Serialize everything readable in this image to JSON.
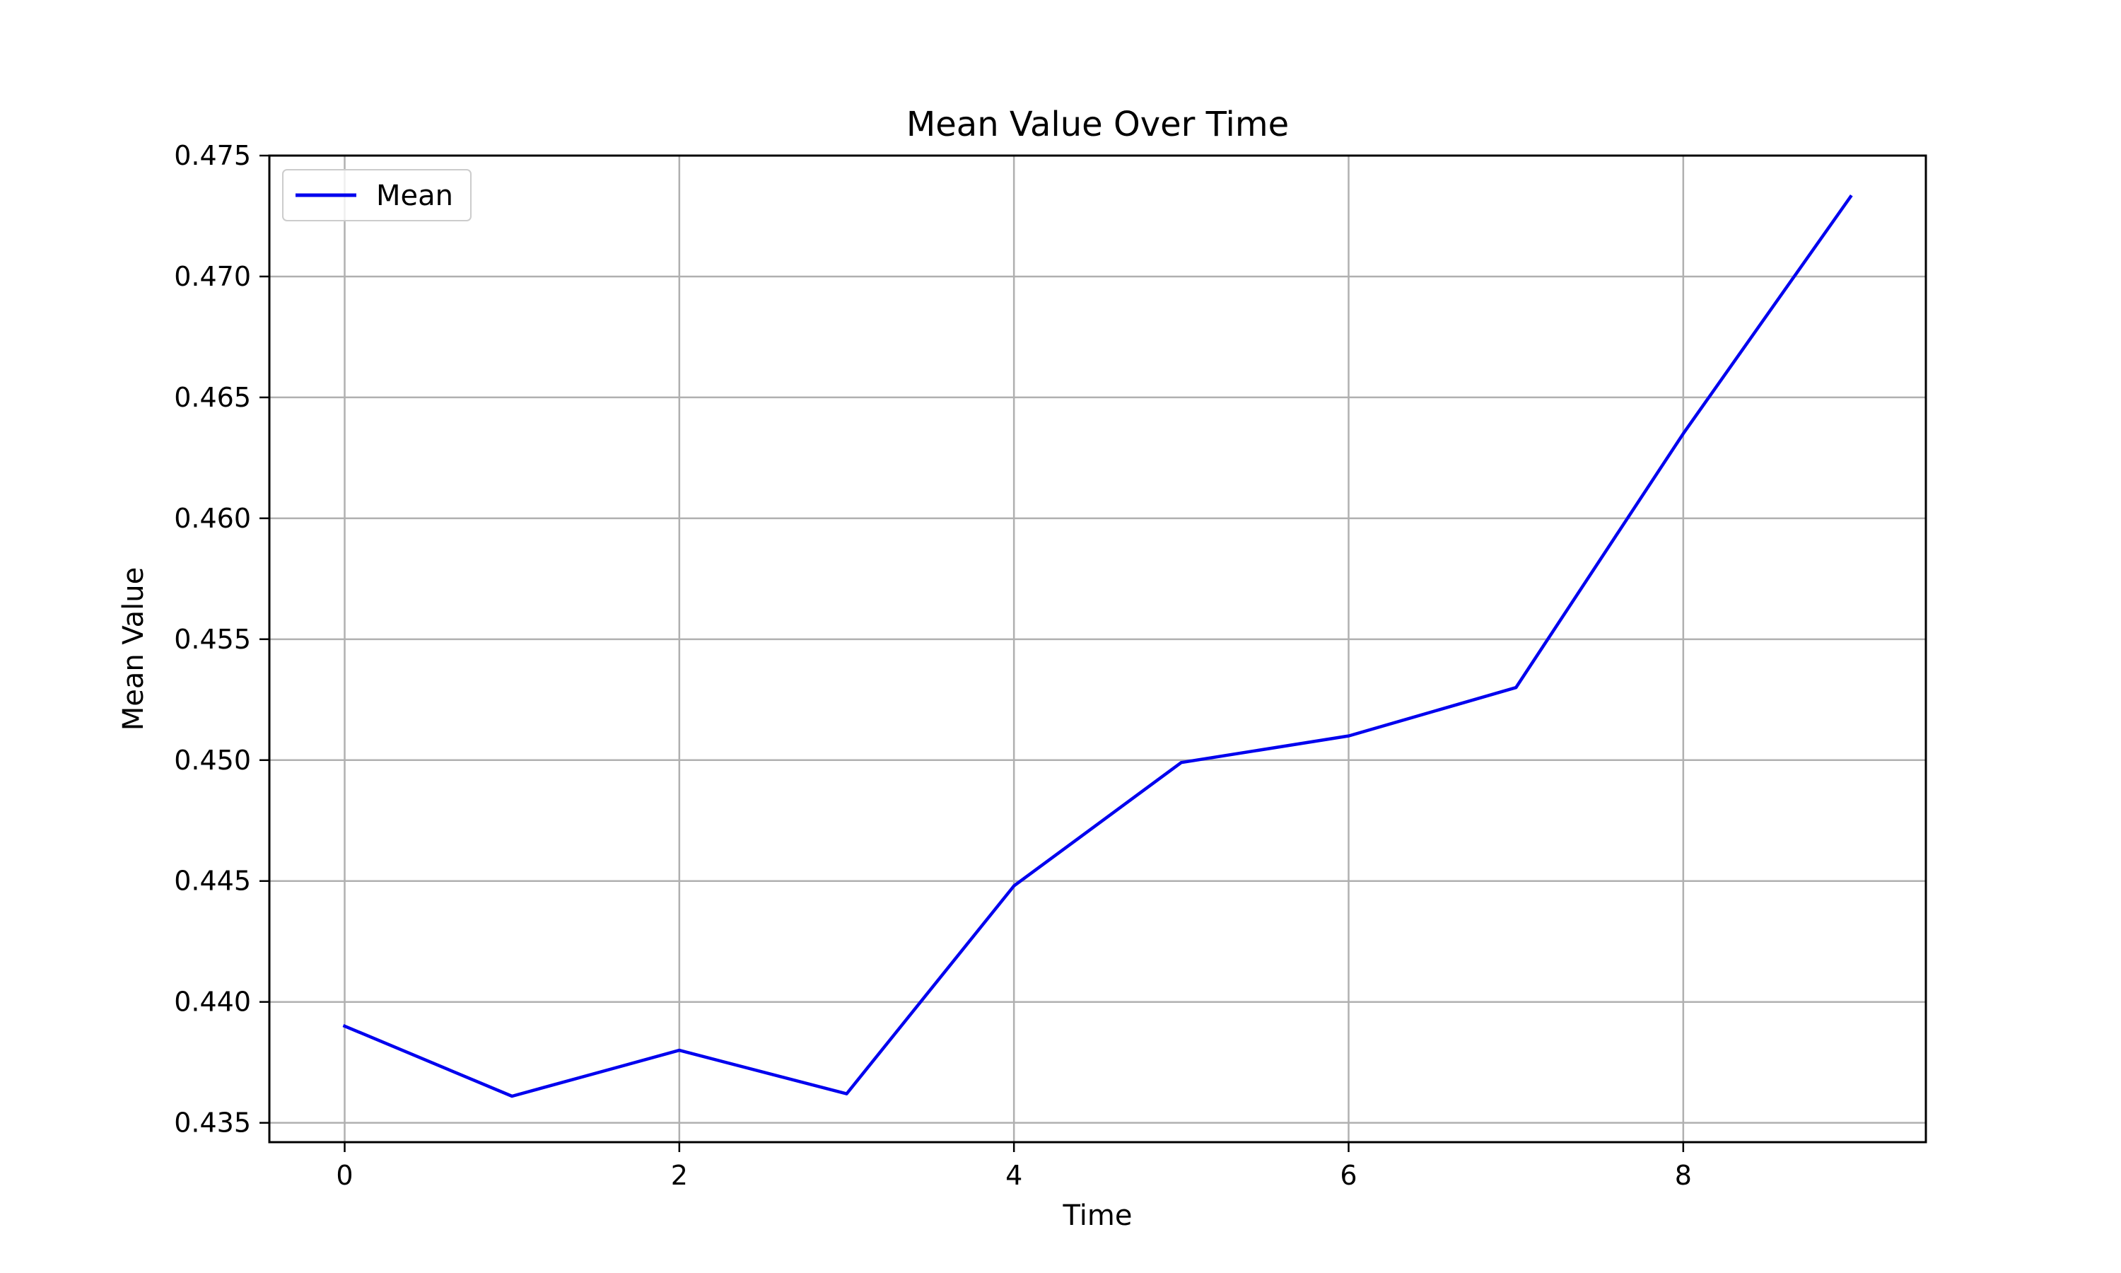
{
  "chart_data": {
    "type": "line",
    "title": "Mean Value Over Time",
    "xlabel": "Time",
    "ylabel": "Mean Value",
    "xlim": [
      -0.45,
      9.45
    ],
    "ylim": [
      0.4342,
      0.475
    ],
    "x_ticks": [
      0,
      2,
      4,
      6,
      8
    ],
    "x_tick_labels": [
      "0",
      "2",
      "4",
      "6",
      "8"
    ],
    "y_ticks": [
      0.435,
      0.44,
      0.445,
      0.45,
      0.455,
      0.46,
      0.465,
      0.47,
      0.475
    ],
    "y_tick_labels": [
      "0.435",
      "0.440",
      "0.445",
      "0.450",
      "0.455",
      "0.460",
      "0.465",
      "0.470",
      "0.475"
    ],
    "grid": true,
    "legend_position": "top-left",
    "series": [
      {
        "name": "Mean",
        "color": "#0000ee",
        "x": [
          0,
          1,
          2,
          3,
          4,
          5,
          6,
          7,
          8,
          9
        ],
        "values": [
          0.439,
          0.4361,
          0.438,
          0.4362,
          0.4448,
          0.4499,
          0.451,
          0.453,
          0.4635,
          0.4733
        ]
      }
    ]
  }
}
